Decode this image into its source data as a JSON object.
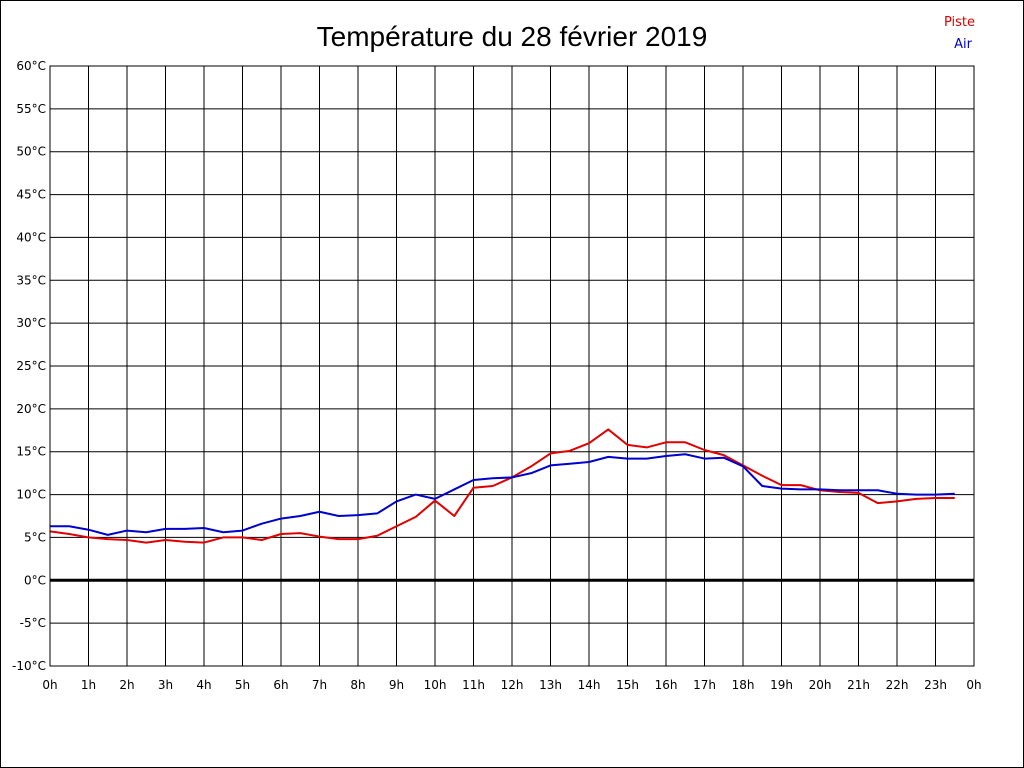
{
  "chart_data": {
    "type": "line",
    "title": "Température du 28 février 2019",
    "xlabel": "",
    "ylabel": "",
    "x_unit": "hour",
    "xlim": [
      0,
      24
    ],
    "ylim": [
      -10,
      60
    ],
    "x_tick_labels": [
      "0h",
      "1h",
      "2h",
      "3h",
      "4h",
      "5h",
      "6h",
      "7h",
      "8h",
      "9h",
      "10h",
      "11h",
      "12h",
      "13h",
      "14h",
      "15h",
      "16h",
      "17h",
      "18h",
      "19h",
      "20h",
      "21h",
      "22h",
      "23h",
      "0h"
    ],
    "y_ticks": [
      -10,
      -5,
      0,
      5,
      10,
      15,
      20,
      25,
      30,
      35,
      40,
      45,
      50,
      55,
      60
    ],
    "y_tick_labels": [
      "-10°C",
      "-5°C",
      "0°C",
      "5°C",
      "10°C",
      "15°C",
      "20°C",
      "25°C",
      "30°C",
      "35°C",
      "40°C",
      "45°C",
      "50°C",
      "55°C",
      "60°C"
    ],
    "grid": true,
    "zero_line": true,
    "legend_position": "top-right",
    "x": [
      0,
      0.5,
      1,
      1.5,
      2,
      2.5,
      3,
      3.5,
      4,
      4.5,
      5,
      5.5,
      6,
      6.5,
      7,
      7.5,
      8,
      8.5,
      9,
      9.5,
      10,
      10.5,
      11,
      11.5,
      12,
      12.5,
      13,
      13.5,
      14,
      14.5,
      15,
      15.5,
      16,
      16.5,
      17,
      17.5,
      18,
      18.5,
      19,
      19.5,
      20,
      20.5,
      21,
      21.5,
      22,
      22.5,
      23,
      23.5
    ],
    "series": [
      {
        "name": "Piste",
        "color": "#e00000",
        "values": [
          5.7,
          5.4,
          5.0,
          4.8,
          4.7,
          4.4,
          4.7,
          4.5,
          4.4,
          5.0,
          5.0,
          4.7,
          5.4,
          5.5,
          5.1,
          4.8,
          4.8,
          5.2,
          6.3,
          7.4,
          9.3,
          7.5,
          10.8,
          11.0,
          12.0,
          13.3,
          14.8,
          15.1,
          16.0,
          17.6,
          15.8,
          15.5,
          16.1,
          16.1,
          15.2,
          14.6,
          13.4,
          12.2,
          11.1,
          11.1,
          10.5,
          10.3,
          10.2,
          9.0,
          9.2,
          9.5,
          9.6,
          9.6
        ]
      },
      {
        "name": "Air",
        "color": "#0000cc",
        "values": [
          6.3,
          6.3,
          5.9,
          5.3,
          5.8,
          5.6,
          6.0,
          6.0,
          6.1,
          5.6,
          5.8,
          6.6,
          7.2,
          7.5,
          8.0,
          7.5,
          7.6,
          7.8,
          9.2,
          10.0,
          9.5,
          10.6,
          11.7,
          11.9,
          12.0,
          12.5,
          13.4,
          13.6,
          13.8,
          14.4,
          14.2,
          14.2,
          14.5,
          14.7,
          14.2,
          14.3,
          13.3,
          11.0,
          10.7,
          10.6,
          10.6,
          10.5,
          10.5,
          10.5,
          10.1,
          10.0,
          10.0,
          10.1
        ]
      }
    ]
  }
}
